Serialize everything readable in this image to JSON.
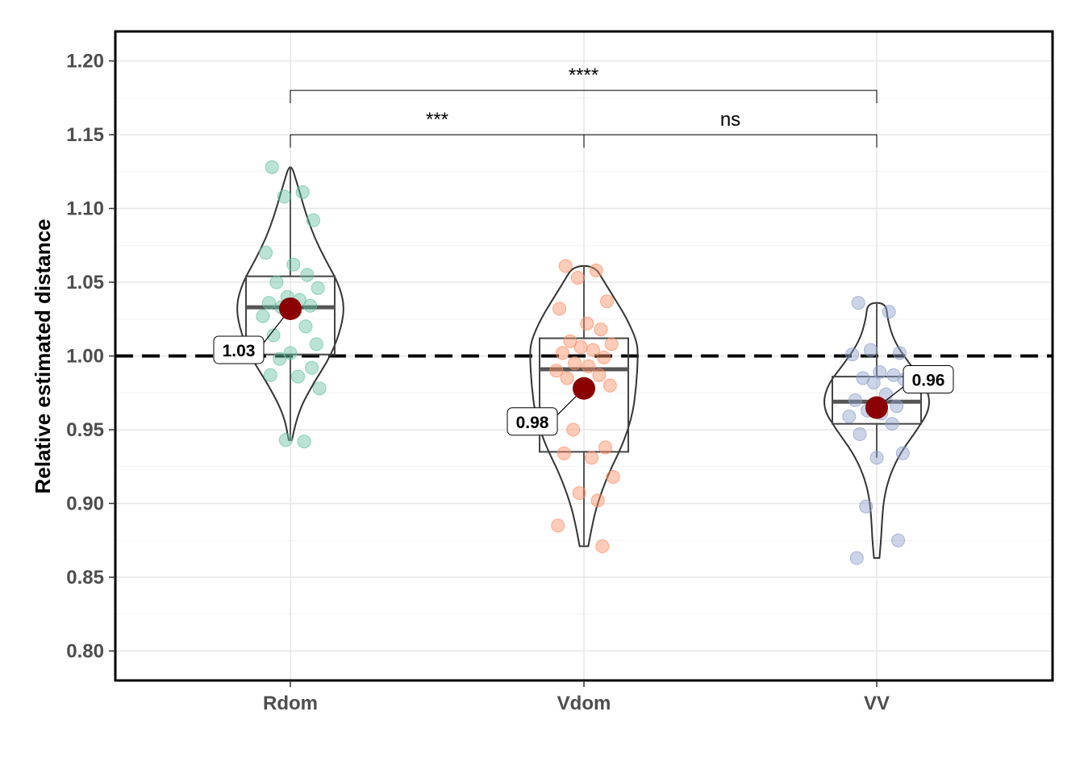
{
  "chart_data": {
    "type": "violin-box-jitter",
    "ylabel": "Relative estimated distance",
    "xlabel": "",
    "ylim": [
      0.78,
      1.22
    ],
    "y_ticks": [
      "0.80",
      "0.85",
      "0.90",
      "0.95",
      "1.00",
      "1.05",
      "1.10",
      "1.15",
      "1.20"
    ],
    "y_tick_values": [
      0.8,
      0.85,
      0.9,
      0.95,
      1.0,
      1.05,
      1.1,
      1.15,
      1.2
    ],
    "categories": [
      "Rdom",
      "Vdom",
      "VV"
    ],
    "reference_line": 1.0,
    "grid": true,
    "mean_color": "#8b0000",
    "groups": [
      {
        "name": "Rdom",
        "color": "#66c2a5",
        "box": {
          "q1": 1.001,
          "median": 1.033,
          "q3": 1.054,
          "whisker_low": 0.943,
          "whisker_high": 1.128
        },
        "mean": 1.032,
        "mean_label": "1.03",
        "violin_profile": [
          [
            0.943,
            0.03
          ],
          [
            0.96,
            0.12
          ],
          [
            0.98,
            0.4
          ],
          [
            1.0,
            0.75
          ],
          [
            1.02,
            0.95
          ],
          [
            1.035,
            1.0
          ],
          [
            1.05,
            0.88
          ],
          [
            1.065,
            0.65
          ],
          [
            1.08,
            0.45
          ],
          [
            1.095,
            0.3
          ],
          [
            1.11,
            0.18
          ],
          [
            1.12,
            0.1
          ],
          [
            1.128,
            0.03
          ]
        ],
        "points": [
          1.128,
          1.111,
          1.108,
          1.092,
          1.07,
          1.062,
          1.055,
          1.05,
          1.046,
          1.04,
          1.038,
          1.036,
          1.034,
          1.033,
          1.03,
          1.027,
          1.02,
          1.014,
          1.008,
          1.002,
          0.998,
          0.992,
          0.987,
          0.986,
          0.978,
          0.943,
          0.942
        ]
      },
      {
        "name": "Vdom",
        "color": "#fc8d62",
        "box": {
          "q1": 0.935,
          "median": 0.991,
          "q3": 1.012,
          "whisker_low": 0.871,
          "whisker_high": 1.061
        },
        "mean": 0.978,
        "mean_label": "0.98",
        "violin_profile": [
          [
            0.871,
            0.08
          ],
          [
            0.885,
            0.15
          ],
          [
            0.9,
            0.25
          ],
          [
            0.92,
            0.45
          ],
          [
            0.94,
            0.72
          ],
          [
            0.96,
            0.9
          ],
          [
            0.98,
            0.97
          ],
          [
            1.0,
            1.0
          ],
          [
            1.01,
            0.98
          ],
          [
            1.025,
            0.8
          ],
          [
            1.04,
            0.55
          ],
          [
            1.05,
            0.38
          ],
          [
            1.061,
            0.2
          ]
        ],
        "points": [
          1.061,
          1.058,
          1.053,
          1.037,
          1.032,
          1.022,
          1.018,
          1.01,
          1.008,
          1.006,
          1.004,
          1.002,
          0.999,
          0.995,
          0.993,
          0.99,
          0.987,
          0.985,
          0.98,
          0.975,
          0.95,
          0.938,
          0.934,
          0.931,
          0.918,
          0.907,
          0.902,
          0.885,
          0.871
        ]
      },
      {
        "name": "VV",
        "color": "#8da0cb",
        "box": {
          "q1": 0.954,
          "median": 0.969,
          "q3": 0.986,
          "whisker_low": 0.931,
          "whisker_high": 1.036
        },
        "mean": 0.965,
        "mean_label": "0.96",
        "violin_profile": [
          [
            0.863,
            0.05
          ],
          [
            0.875,
            0.08
          ],
          [
            0.89,
            0.1
          ],
          [
            0.905,
            0.14
          ],
          [
            0.92,
            0.25
          ],
          [
            0.935,
            0.45
          ],
          [
            0.95,
            0.75
          ],
          [
            0.965,
            1.0
          ],
          [
            0.98,
            0.92
          ],
          [
            0.995,
            0.6
          ],
          [
            1.01,
            0.32
          ],
          [
            1.025,
            0.2
          ],
          [
            1.036,
            0.17
          ]
        ],
        "points": [
          1.036,
          1.03,
          1.004,
          1.002,
          1.001,
          0.989,
          0.987,
          0.985,
          0.984,
          0.982,
          0.974,
          0.97,
          0.966,
          0.963,
          0.961,
          0.959,
          0.954,
          0.947,
          0.934,
          0.931,
          0.898,
          0.875,
          0.863
        ]
      }
    ],
    "comparisons": [
      {
        "from": "Rdom",
        "to": "Vdom",
        "label": "***",
        "y": 1.15
      },
      {
        "from": "Vdom",
        "to": "VV",
        "label": "ns",
        "y": 1.15
      },
      {
        "from": "Rdom",
        "to": "VV",
        "label": "****",
        "y": 1.18
      }
    ]
  }
}
